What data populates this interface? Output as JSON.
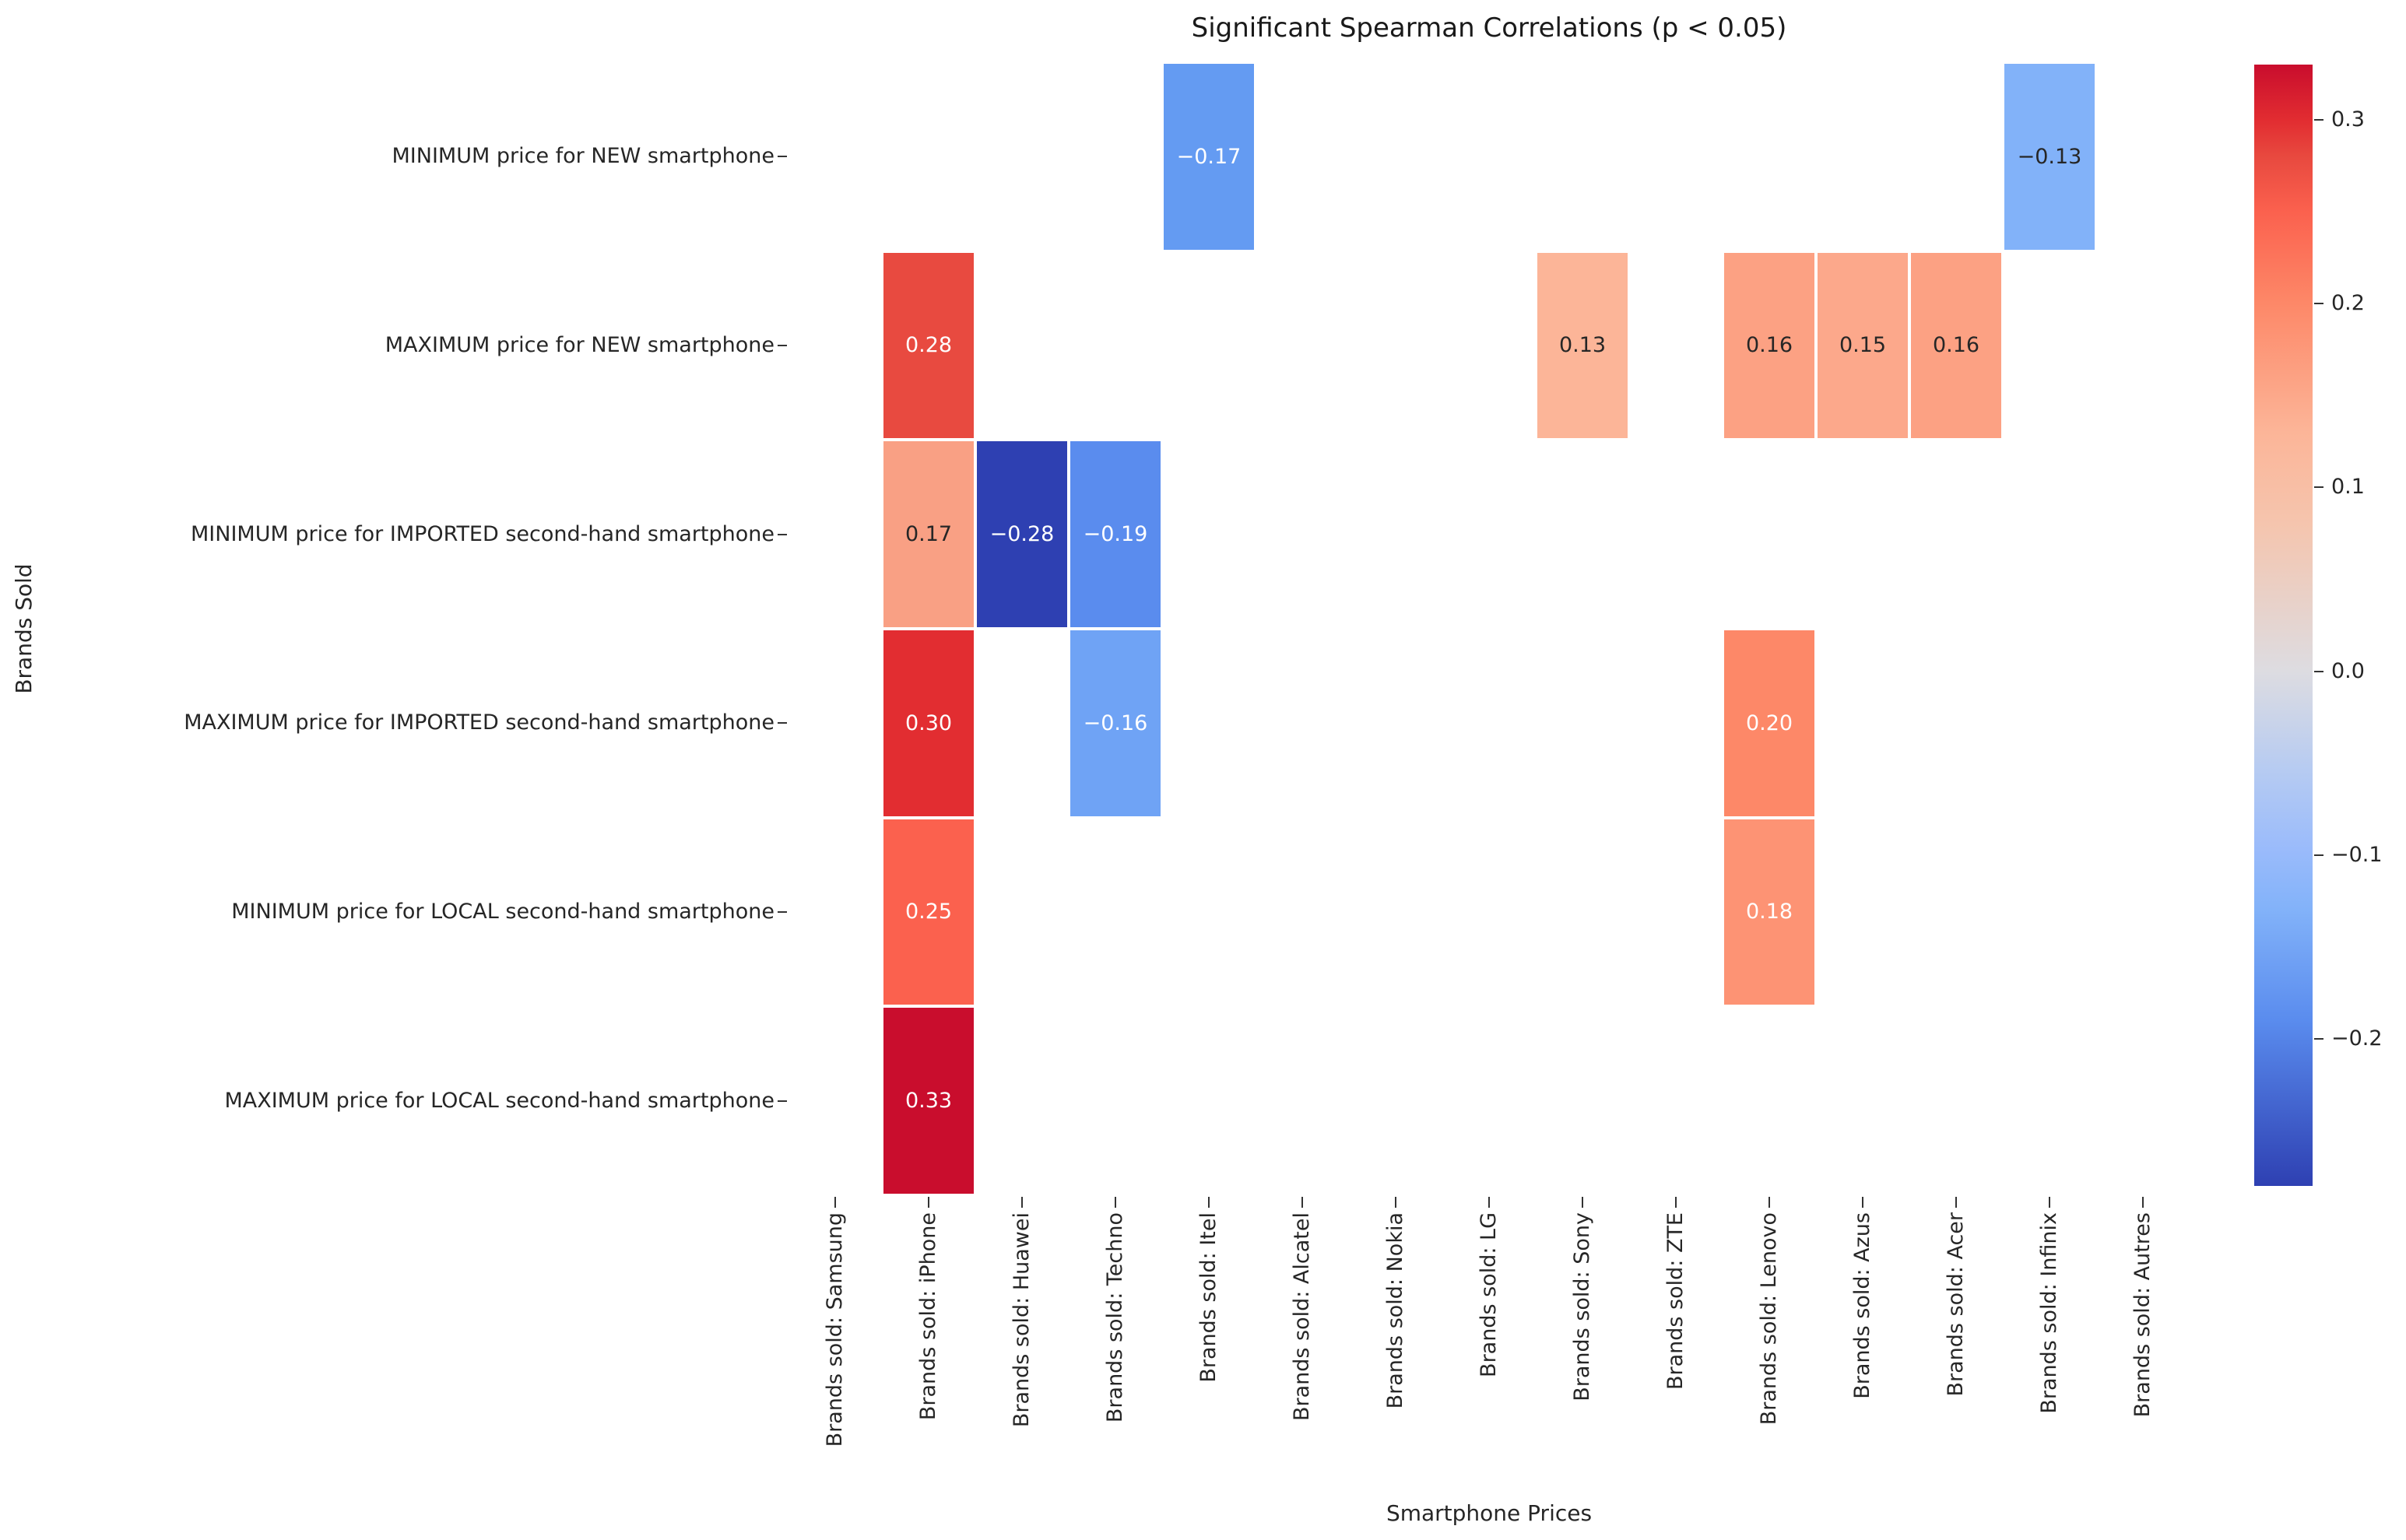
{
  "chart_data": {
    "type": "heatmap",
    "title": "Significant Spearman Correlations (p < 0.05)",
    "xlabel": "Smartphone Prices",
    "ylabel": "Brands Sold",
    "x_tick_labels": [
      "Brands sold: Samsung",
      "Brands sold: iPhone",
      "Brands sold: Huawei",
      "Brands sold: Techno",
      "Brands sold: Itel",
      "Brands sold: Alcatel",
      "Brands sold: Nokia",
      "Brands sold: LG",
      "Brands sold: Sony",
      "Brands sold: ZTE",
      "Brands sold: Lenovo",
      "Brands sold: Azus",
      "Brands sold: Acer",
      "Brands sold: Infinix",
      "Brands sold: Autres"
    ],
    "y_tick_labels": [
      "MINIMUM price for NEW smartphone",
      "MAXIMUM price for NEW smartphone",
      "MINIMUM price for IMPORTED second-hand smartphone",
      "MAXIMUM price for IMPORTED second-hand smartphone",
      "MINIMUM price for LOCAL second-hand smartphone",
      "MAXIMUM price for LOCAL second-hand smartphone"
    ],
    "vmin": -0.28,
    "vmax": 0.33,
    "cells": [
      {
        "row": 0,
        "col": 4,
        "value": -0.17,
        "label": "−0.17",
        "bg": "#649bf2",
        "fg": "#ffffff"
      },
      {
        "row": 0,
        "col": 13,
        "value": -0.13,
        "label": "−0.13",
        "bg": "#82b2f9",
        "fg": "#262626"
      },
      {
        "row": 1,
        "col": 1,
        "value": 0.28,
        "label": "0.28",
        "bg": "#e84a40",
        "fg": "#ffffff"
      },
      {
        "row": 1,
        "col": 8,
        "value": 0.13,
        "label": "0.13",
        "bg": "#fcb598",
        "fg": "#262626"
      },
      {
        "row": 1,
        "col": 10,
        "value": 0.16,
        "label": "0.16",
        "bg": "#fca183",
        "fg": "#262626"
      },
      {
        "row": 1,
        "col": 11,
        "value": 0.15,
        "label": "0.15",
        "bg": "#fca88b",
        "fg": "#262626"
      },
      {
        "row": 1,
        "col": 12,
        "value": 0.16,
        "label": "0.16",
        "bg": "#fca183",
        "fg": "#262626"
      },
      {
        "row": 2,
        "col": 1,
        "value": 0.17,
        "label": "0.17",
        "bg": "#f9a084",
        "fg": "#262626"
      },
      {
        "row": 2,
        "col": 2,
        "value": -0.28,
        "label": "−0.28",
        "bg": "#2e40b2",
        "fg": "#ffffff"
      },
      {
        "row": 2,
        "col": 3,
        "value": -0.19,
        "label": "−0.19",
        "bg": "#5a8cee",
        "fg": "#ffffff"
      },
      {
        "row": 3,
        "col": 1,
        "value": 0.3,
        "label": "0.30",
        "bg": "#e22d31",
        "fg": "#ffffff"
      },
      {
        "row": 3,
        "col": 3,
        "value": -0.16,
        "label": "−0.16",
        "bg": "#6fa3f5",
        "fg": "#ffffff"
      },
      {
        "row": 3,
        "col": 10,
        "value": 0.2,
        "label": "0.20",
        "bg": "#fd8868",
        "fg": "#ffffff"
      },
      {
        "row": 4,
        "col": 1,
        "value": 0.25,
        "label": "0.25",
        "bg": "#fb614e",
        "fg": "#ffffff"
      },
      {
        "row": 4,
        "col": 10,
        "value": 0.18,
        "label": "0.18",
        "bg": "#fd9374",
        "fg": "#ffffff"
      },
      {
        "row": 5,
        "col": 1,
        "value": 0.33,
        "label": "0.33",
        "bg": "#c90d2d",
        "fg": "#ffffff"
      }
    ],
    "colorbar": {
      "tick_labels": [
        "0.3",
        "0.2",
        "0.1",
        "0.0",
        "−0.1",
        "−0.2"
      ],
      "tick_values": [
        0.3,
        0.2,
        0.1,
        0.0,
        -0.1,
        -0.2
      ],
      "gradient": [
        {
          "at": "0%",
          "color": "#c90d2d"
        },
        {
          "at": "5%",
          "color": "#e22d31"
        },
        {
          "at": "8.2%",
          "color": "#e8493f"
        },
        {
          "at": "13.1%",
          "color": "#fb614e"
        },
        {
          "at": "21.3%",
          "color": "#fd8868"
        },
        {
          "at": "32.8%",
          "color": "#fcb598"
        },
        {
          "at": "41%",
          "color": "#f5c5ae"
        },
        {
          "at": "54.1%",
          "color": "#dddce1"
        },
        {
          "at": "63%",
          "color": "#b6cbf2"
        },
        {
          "at": "70%",
          "color": "#9abbfb"
        },
        {
          "at": "75.4%",
          "color": "#82b2f9"
        },
        {
          "at": "85.2%",
          "color": "#5a8cee"
        },
        {
          "at": "100%",
          "color": "#2e40b2"
        }
      ]
    },
    "legend_position": "right",
    "grid": false
  }
}
